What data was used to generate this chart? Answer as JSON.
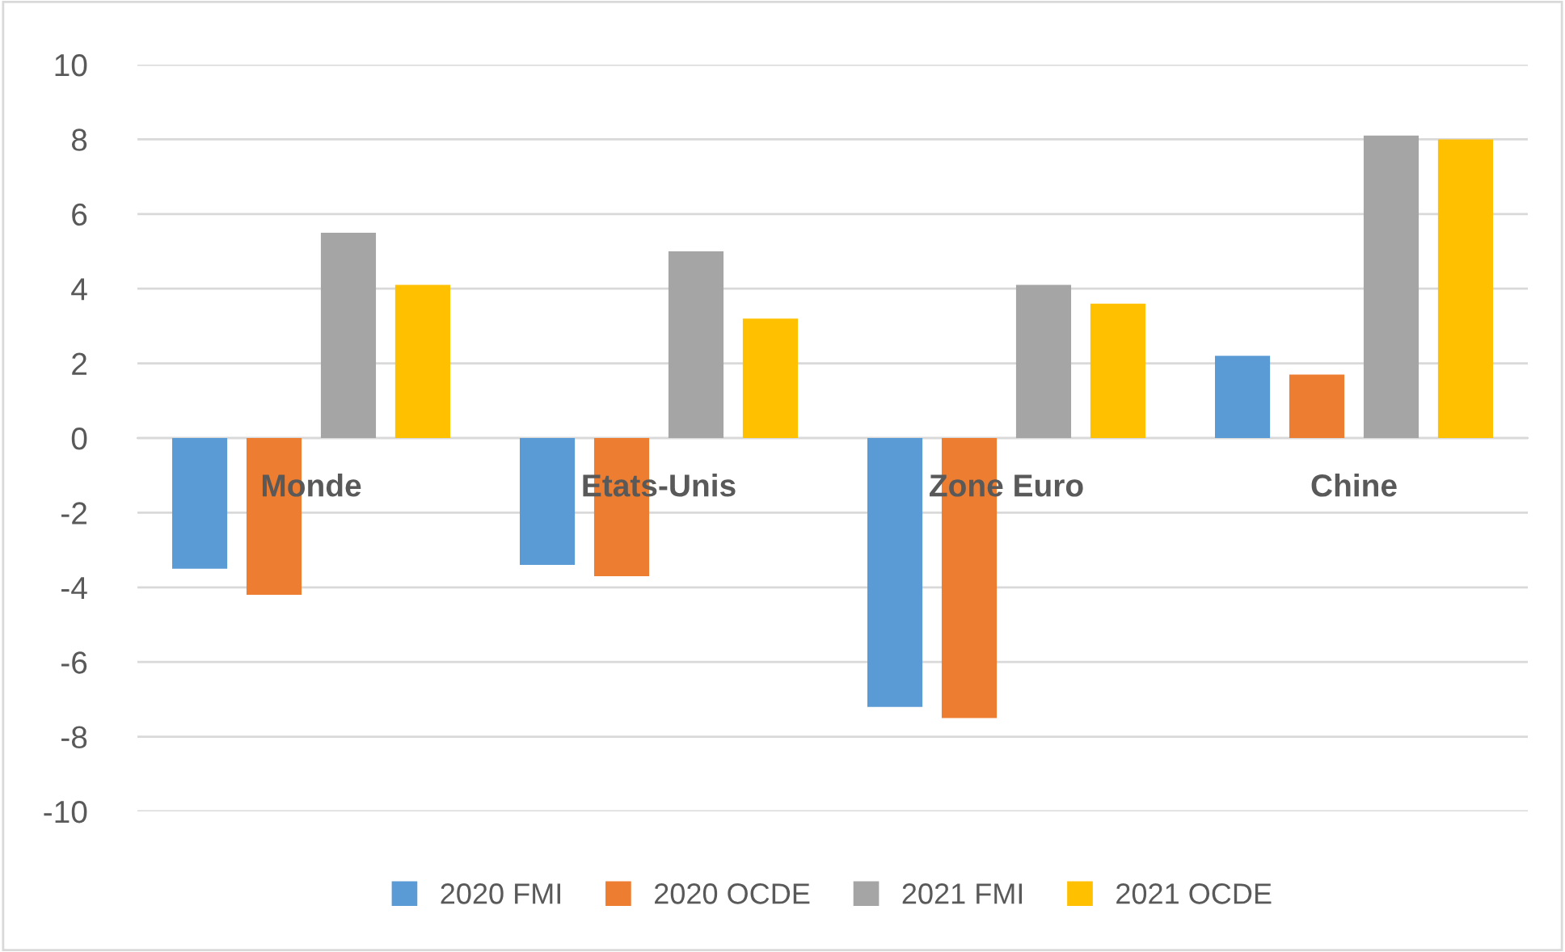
{
  "chart_data": {
    "type": "bar",
    "categories": [
      "Monde",
      "Etats-Unis",
      "Zone Euro",
      "Chine"
    ],
    "series": [
      {
        "name": "2020 FMI",
        "color": "#5b9bd5",
        "values": [
          -3.5,
          -3.4,
          -7.2,
          2.2
        ]
      },
      {
        "name": "2020 OCDE",
        "color": "#ed7d31",
        "values": [
          -4.2,
          -3.7,
          -7.5,
          1.7
        ]
      },
      {
        "name": "2021 FMI",
        "color": "#a5a5a5",
        "values": [
          5.5,
          5.0,
          4.1,
          8.1
        ]
      },
      {
        "name": "2021 OCDE",
        "color": "#ffc000",
        "values": [
          4.1,
          3.2,
          3.6,
          8.0
        ]
      }
    ],
    "ylim": [
      -10,
      10
    ],
    "yticks": [
      -10,
      -8,
      -6,
      -4,
      -2,
      0,
      2,
      4,
      6,
      8,
      10
    ],
    "grid": "y",
    "legend": "bottom"
  }
}
